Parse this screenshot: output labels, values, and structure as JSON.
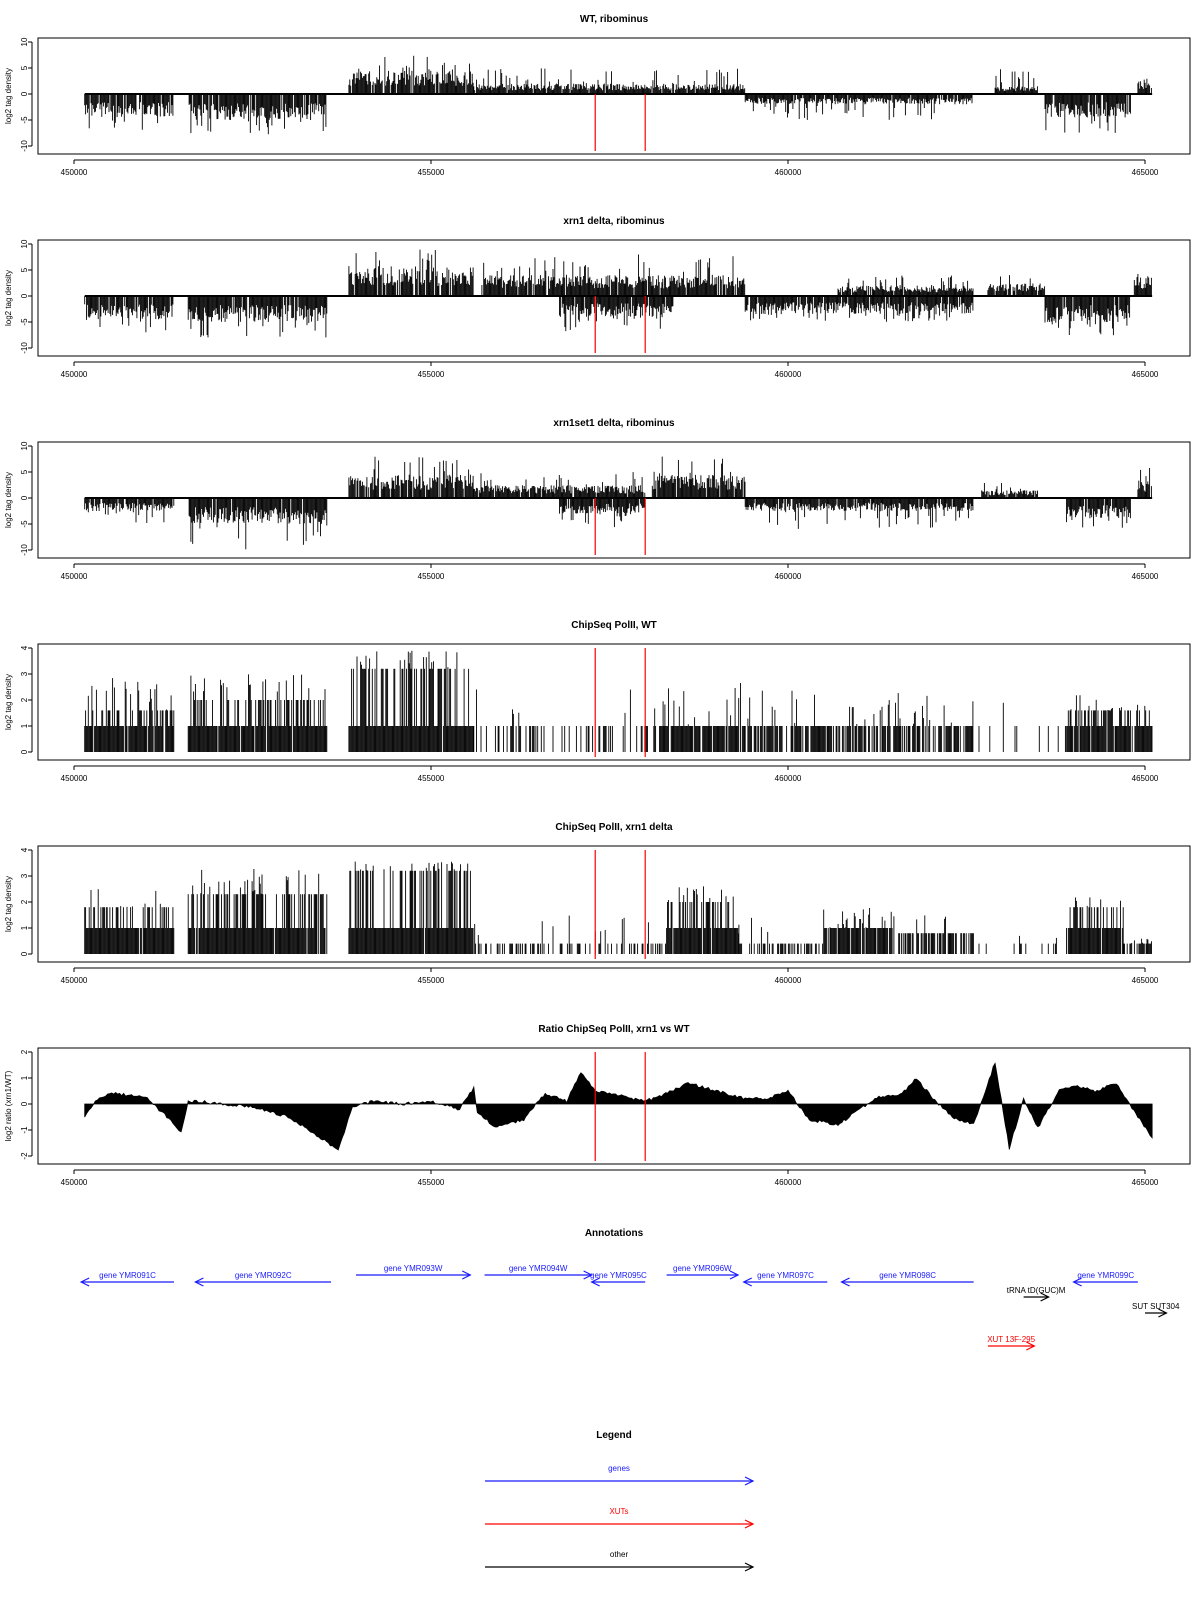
{
  "chart_data": [
    {
      "type": "bar",
      "title": "WT, ribominus",
      "xlabel": "",
      "ylabel": "log2 tag density",
      "xlim": [
        450000,
        465000
      ],
      "ylim": [
        -10,
        10
      ],
      "yticks": [
        -10,
        -5,
        0,
        5,
        10
      ],
      "xticks": [
        450000,
        455000,
        460000,
        465000
      ],
      "markers": [
        457300,
        458000
      ],
      "profile": [
        {
          "x0": 450150,
          "x1": 451400,
          "sign": -1,
          "amp": 4.5,
          "spike": 7
        },
        {
          "x0": 451600,
          "x1": 453550,
          "sign": -1,
          "amp": 5.0,
          "spike": 8
        },
        {
          "x0": 453850,
          "x1": 455600,
          "sign": 1,
          "amp": 4.5,
          "spike": 8
        },
        {
          "x0": 455600,
          "x1": 459400,
          "sign": 1,
          "amp": 2.0,
          "spike": 5
        },
        {
          "x0": 459400,
          "x1": 462600,
          "sign": -1,
          "amp": 2.0,
          "spike": 5
        },
        {
          "x0": 462900,
          "x1": 463500,
          "sign": 1,
          "amp": 1.5,
          "spike": 5
        },
        {
          "x0": 463600,
          "x1": 464800,
          "sign": -1,
          "amp": 4.5,
          "spike": 8
        },
        {
          "x0": 464900,
          "x1": 465100,
          "sign": 1,
          "amp": 2.5,
          "spike": 3.5
        }
      ]
    },
    {
      "type": "bar",
      "title": "xrn1 delta, ribominus",
      "xlabel": "",
      "ylabel": "log2 tag density",
      "xlim": [
        450000,
        465000
      ],
      "ylim": [
        -10,
        10
      ],
      "yticks": [
        -10,
        -5,
        0,
        5,
        10
      ],
      "xticks": [
        450000,
        455000,
        460000,
        465000
      ],
      "markers": [
        457300,
        458000
      ],
      "profile": [
        {
          "x0": 450150,
          "x1": 451400,
          "sign": -1,
          "amp": 4.5,
          "spike": 7
        },
        {
          "x0": 451600,
          "x1": 453550,
          "sign": -1,
          "amp": 5.0,
          "spike": 8
        },
        {
          "x0": 453850,
          "x1": 455600,
          "sign": 1,
          "amp": 5.5,
          "spike": 9
        },
        {
          "x0": 455700,
          "x1": 459400,
          "sign": 1,
          "amp": 4.0,
          "spike": 8
        },
        {
          "x0": 456800,
          "x1": 458400,
          "sign": -1,
          "amp": 4.0,
          "spike": 7
        },
        {
          "x0": 459400,
          "x1": 462600,
          "sign": -1,
          "amp": 3.5,
          "spike": 5
        },
        {
          "x0": 460700,
          "x1": 462600,
          "sign": 1,
          "amp": 2.0,
          "spike": 4
        },
        {
          "x0": 462800,
          "x1": 463600,
          "sign": 1,
          "amp": 2.5,
          "spike": 4.5
        },
        {
          "x0": 463600,
          "x1": 464800,
          "sign": -1,
          "amp": 5.0,
          "spike": 8
        },
        {
          "x0": 464850,
          "x1": 465100,
          "sign": 1,
          "amp": 4.0,
          "spike": 7
        }
      ]
    },
    {
      "type": "bar",
      "title": "xrn1set1 delta, ribominus",
      "xlabel": "",
      "ylabel": "log2 tag density",
      "xlim": [
        450000,
        465000
      ],
      "ylim": [
        -10,
        10
      ],
      "yticks": [
        -10,
        -5,
        0,
        5,
        10
      ],
      "xticks": [
        450000,
        455000,
        460000,
        465000
      ],
      "markers": [
        457300,
        458000
      ],
      "profile": [
        {
          "x0": 450150,
          "x1": 451400,
          "sign": -1,
          "amp": 2.5,
          "spike": 5
        },
        {
          "x0": 451600,
          "x1": 453550,
          "sign": -1,
          "amp": 5.0,
          "spike": 10
        },
        {
          "x0": 453850,
          "x1": 455600,
          "sign": 1,
          "amp": 4.5,
          "spike": 8
        },
        {
          "x0": 455600,
          "x1": 458000,
          "sign": 1,
          "amp": 2.5,
          "spike": 5
        },
        {
          "x0": 456800,
          "x1": 458000,
          "sign": -1,
          "amp": 3.0,
          "spike": 6
        },
        {
          "x0": 458100,
          "x1": 459400,
          "sign": 1,
          "amp": 4.5,
          "spike": 9
        },
        {
          "x0": 459400,
          "x1": 462600,
          "sign": -1,
          "amp": 2.5,
          "spike": 6
        },
        {
          "x0": 462700,
          "x1": 463500,
          "sign": 1,
          "amp": 1.5,
          "spike": 3
        },
        {
          "x0": 463900,
          "x1": 464800,
          "sign": -1,
          "amp": 4.0,
          "spike": 7
        },
        {
          "x0": 464900,
          "x1": 465100,
          "sign": 1,
          "amp": 3.5,
          "spike": 6
        }
      ]
    },
    {
      "type": "bar",
      "title": "ChipSeq PolII, WT",
      "xlabel": "",
      "ylabel": "log2 tag density",
      "xlim": [
        450000,
        465000
      ],
      "ylim": [
        0,
        4
      ],
      "yticks": [
        0,
        1,
        2,
        3,
        4
      ],
      "xticks": [
        450000,
        455000,
        460000,
        465000
      ],
      "markers": [
        457300,
        458000
      ],
      "profile": [
        {
          "x0": 450150,
          "x1": 451400,
          "sign": 1,
          "amp": 1.6,
          "spike": 2.9,
          "dense": 0.95
        },
        {
          "x0": 451600,
          "x1": 453550,
          "sign": 1,
          "amp": 2.0,
          "spike": 3.0,
          "dense": 0.95
        },
        {
          "x0": 453850,
          "x1": 455600,
          "sign": 1,
          "amp": 3.2,
          "spike": 3.9,
          "dense": 0.97
        },
        {
          "x0": 455600,
          "x1": 458200,
          "sign": 1,
          "amp": 1.0,
          "spike": 2.5,
          "dense": 0.35
        },
        {
          "x0": 458200,
          "x1": 459400,
          "sign": 1,
          "amp": 1.0,
          "spike": 2.8,
          "dense": 0.85
        },
        {
          "x0": 459400,
          "x1": 462600,
          "sign": 1,
          "amp": 1.0,
          "spike": 2.4,
          "dense": 0.7
        },
        {
          "x0": 462600,
          "x1": 463900,
          "sign": 1,
          "amp": 1.0,
          "spike": 2.0,
          "dense": 0.15
        },
        {
          "x0": 463900,
          "x1": 465100,
          "sign": 1,
          "amp": 1.6,
          "spike": 2.3,
          "dense": 0.9
        }
      ]
    },
    {
      "type": "bar",
      "title": "ChipSeq PolII, xrn1 delta",
      "xlabel": "",
      "ylabel": "log2 tag density",
      "xlim": [
        450000,
        465000
      ],
      "ylim": [
        0,
        4
      ],
      "yticks": [
        0,
        1,
        2,
        3,
        4
      ],
      "xticks": [
        450000,
        455000,
        460000,
        465000
      ],
      "markers": [
        457300,
        458000
      ],
      "profile": [
        {
          "x0": 450150,
          "x1": 451400,
          "sign": 1,
          "amp": 1.8,
          "spike": 2.5,
          "dense": 0.95
        },
        {
          "x0": 451600,
          "x1": 453550,
          "sign": 1,
          "amp": 2.3,
          "spike": 3.4,
          "dense": 0.95
        },
        {
          "x0": 453850,
          "x1": 455600,
          "sign": 1,
          "amp": 3.2,
          "spike": 3.6,
          "dense": 0.97
        },
        {
          "x0": 455600,
          "x1": 458300,
          "sign": 1,
          "amp": 0.4,
          "spike": 1.5,
          "dense": 0.35
        },
        {
          "x0": 458300,
          "x1": 459300,
          "sign": 1,
          "amp": 2.0,
          "spike": 2.6,
          "dense": 0.95
        },
        {
          "x0": 459300,
          "x1": 460500,
          "sign": 1,
          "amp": 0.4,
          "spike": 1.5,
          "dense": 0.5
        },
        {
          "x0": 460500,
          "x1": 461500,
          "sign": 1,
          "amp": 1.0,
          "spike": 1.8,
          "dense": 0.9
        },
        {
          "x0": 461500,
          "x1": 462600,
          "sign": 1,
          "amp": 0.8,
          "spike": 1.6,
          "dense": 0.7
        },
        {
          "x0": 462600,
          "x1": 463900,
          "sign": 1,
          "amp": 0.4,
          "spike": 0.8,
          "dense": 0.1
        },
        {
          "x0": 463900,
          "x1": 464700,
          "sign": 1,
          "amp": 1.8,
          "spike": 2.3,
          "dense": 0.95
        },
        {
          "x0": 464700,
          "x1": 465100,
          "sign": 1,
          "amp": 0.4,
          "spike": 0.6,
          "dense": 0.6
        }
      ]
    },
    {
      "type": "area",
      "title": "Ratio ChipSeq PolII, xrn1 vs WT",
      "xlabel": "",
      "ylabel": "log2 ratio (xrn1/WT)",
      "xlim": [
        450000,
        465000
      ],
      "ylim": [
        -2,
        2
      ],
      "yticks": [
        -2,
        -1,
        0,
        1,
        2
      ],
      "xticks": [
        450000,
        455000,
        460000,
        465000
      ],
      "markers": [
        457300,
        458000
      ],
      "x": [
        450150,
        450300,
        450500,
        451000,
        451300,
        451500,
        451600,
        451800,
        452000,
        452500,
        453000,
        453400,
        453700,
        453900,
        454200,
        454600,
        455000,
        455400,
        455600,
        455650,
        455900,
        456300,
        456600,
        456900,
        457100,
        457300,
        457700,
        458000,
        458200,
        458600,
        459000,
        459400,
        459700,
        460000,
        460300,
        460700,
        461000,
        461300,
        461600,
        461800,
        462000,
        462300,
        462600,
        462900,
        463100,
        463300,
        463500,
        463800,
        464000,
        464300,
        464600,
        464900,
        465100
      ],
      "y": [
        -0.5,
        0.1,
        0.4,
        0.3,
        -0.5,
        -1.1,
        0.1,
        0.1,
        0.0,
        -0.1,
        -0.5,
        -1.2,
        -1.8,
        -0.1,
        0.1,
        0.0,
        0.1,
        -0.2,
        0.6,
        -0.3,
        -0.9,
        -0.6,
        0.4,
        0.1,
        1.2,
        0.5,
        0.3,
        0.1,
        0.3,
        0.8,
        0.5,
        0.2,
        0.2,
        0.5,
        -0.6,
        -0.8,
        -0.2,
        0.3,
        0.4,
        1.0,
        0.3,
        -0.5,
        -0.8,
        1.6,
        -1.7,
        0.2,
        -0.9,
        0.5,
        0.7,
        0.5,
        0.8,
        -0.5,
        -1.3
      ]
    }
  ],
  "annotations": {
    "title": "Annotations",
    "features": [
      {
        "label": "gene YMR091C",
        "start": 451400,
        "end": 450100,
        "row": 1,
        "color": "#1a1aff"
      },
      {
        "label": "gene YMR092C",
        "start": 453600,
        "end": 451700,
        "row": 1,
        "color": "#1a1aff"
      },
      {
        "label": "gene YMR093W",
        "start": 453950,
        "end": 455550,
        "row": 0,
        "color": "#1a1aff"
      },
      {
        "label": "gene YMR094W",
        "start": 455750,
        "end": 457250,
        "row": 0,
        "color": "#1a1aff"
      },
      {
        "label": "gene YMR095C",
        "start": 458000,
        "end": 457250,
        "row": 1,
        "color": "#1a1aff"
      },
      {
        "label": "gene YMR096W",
        "start": 458300,
        "end": 459300,
        "row": 0,
        "color": "#1a1aff"
      },
      {
        "label": "gene YMR097C",
        "start": 460550,
        "end": 459380,
        "row": 1,
        "color": "#1a1aff"
      },
      {
        "label": "gene YMR098C",
        "start": 462600,
        "end": 460750,
        "row": 1,
        "color": "#1a1aff"
      },
      {
        "label": "gene YMR099C",
        "start": 464900,
        "end": 464000,
        "row": 1,
        "color": "#1a1aff"
      },
      {
        "label": "tRNA tD(GUC)M",
        "start": 463300,
        "end": 463650,
        "row": 2,
        "color": "#000000"
      },
      {
        "label": "SUT SUT304",
        "start": 465000,
        "end": 465300,
        "row": 3,
        "color": "#000000"
      },
      {
        "label": "XUT 13F-295",
        "start": 462800,
        "end": 463450,
        "row": 5,
        "color": "#ff0000"
      }
    ]
  },
  "legend": {
    "title": "Legend",
    "items": [
      {
        "label": "genes",
        "color": "#1a1aff"
      },
      {
        "label": "XUTs",
        "color": "#ff0000"
      },
      {
        "label": "other",
        "color": "#000000"
      }
    ]
  }
}
